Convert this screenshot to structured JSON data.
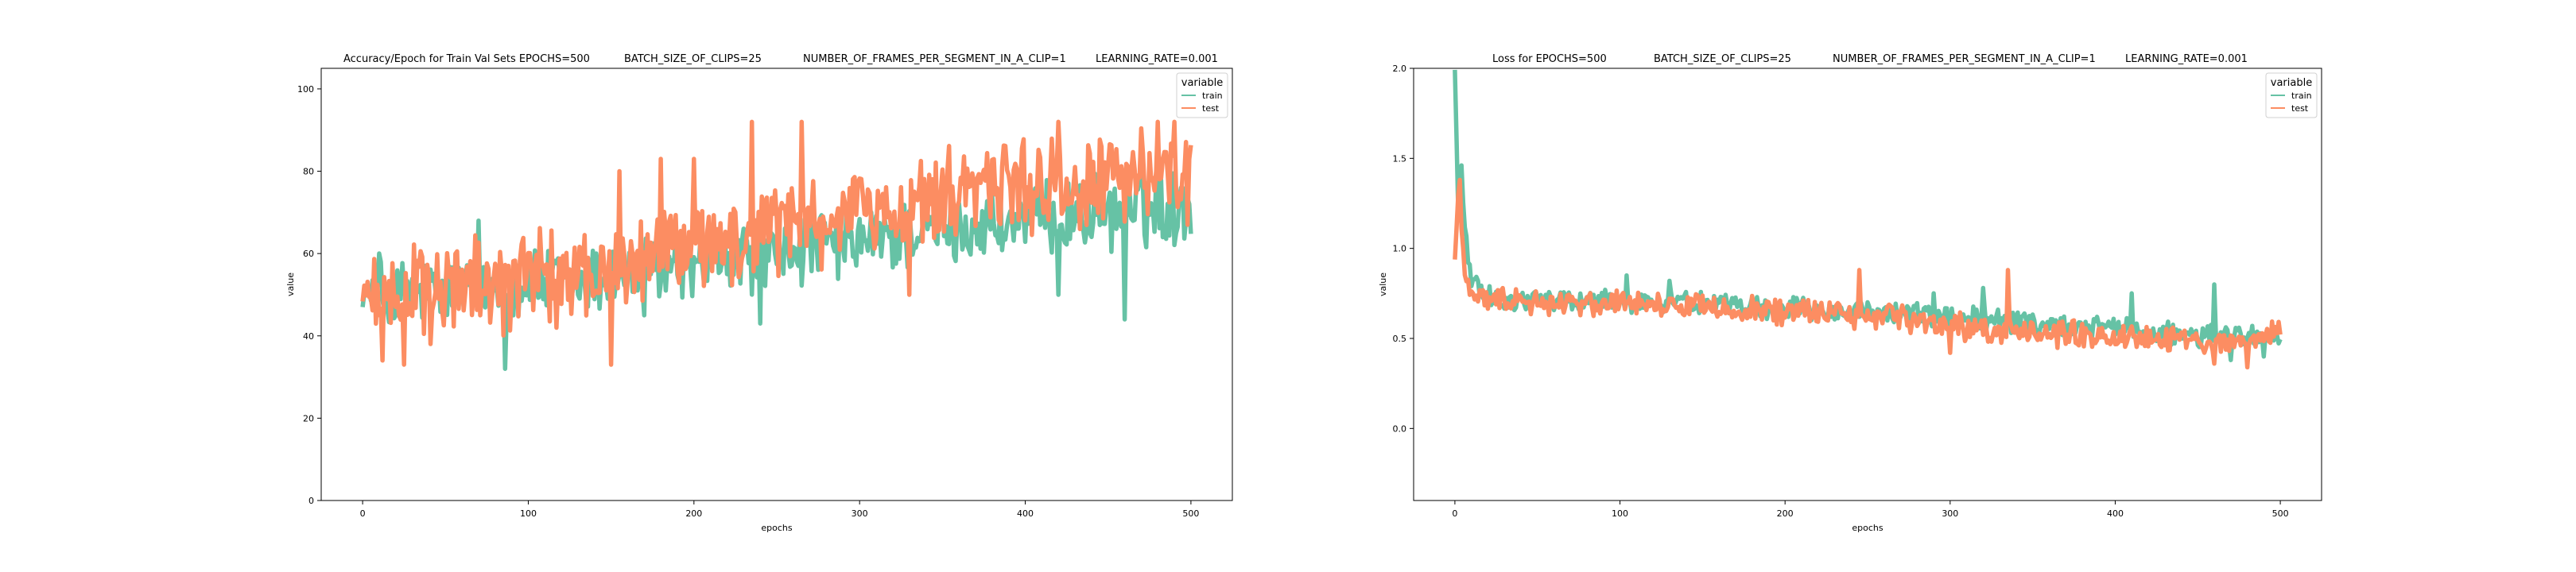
{
  "figure": {
    "background": "#ffffff",
    "series_colors": {
      "train": "#66c2a5",
      "test": "#fc8d62"
    }
  },
  "chart_data": [
    {
      "type": "line",
      "title_segments": [
        "Accuracy/Epoch for Train Val Sets EPOCHS=500",
        "BATCH_SIZE_OF_CLIPS=25",
        "NUMBER_OF_FRAMES_PER_SEGMENT_IN_A_CLIP=1",
        "LEARNING_RATE=0.001"
      ],
      "xlabel": "epochs",
      "ylabel": "value",
      "xlim": [
        -25,
        525
      ],
      "ylim": [
        0,
        105
      ],
      "xticks": [
        0,
        100,
        200,
        300,
        400,
        500
      ],
      "yticks": [
        0,
        20,
        40,
        60,
        80,
        100
      ],
      "grid": false,
      "legend": {
        "title": "variable",
        "placement": "top-right",
        "entries": [
          "train",
          "test"
        ]
      },
      "series": [
        {
          "name": "train",
          "color": "#66c2a5",
          "anchors": [
            [
              0,
              50
            ],
            [
              10,
              50
            ],
            [
              20,
              49
            ],
            [
              30,
              51
            ],
            [
              40,
              50
            ],
            [
              50,
              51
            ],
            [
              60,
              52
            ],
            [
              70,
              51
            ],
            [
              80,
              52
            ],
            [
              90,
              53
            ],
            [
              100,
              53
            ],
            [
              110,
              52
            ],
            [
              120,
              53
            ],
            [
              130,
              53
            ],
            [
              140,
              54
            ],
            [
              150,
              54
            ],
            [
              160,
              55
            ],
            [
              170,
              55
            ],
            [
              180,
              56
            ],
            [
              190,
              57
            ],
            [
              200,
              57
            ],
            [
              210,
              58
            ],
            [
              220,
              58
            ],
            [
              230,
              59
            ],
            [
              240,
              60
            ],
            [
              250,
              60
            ],
            [
              260,
              61
            ],
            [
              270,
              61
            ],
            [
              280,
              62
            ],
            [
              290,
              62
            ],
            [
              300,
              63
            ],
            [
              310,
              63
            ],
            [
              320,
              64
            ],
            [
              330,
              65
            ],
            [
              340,
              65
            ],
            [
              350,
              66
            ],
            [
              360,
              66
            ],
            [
              370,
              67
            ],
            [
              380,
              67
            ],
            [
              390,
              67
            ],
            [
              400,
              68
            ],
            [
              410,
              68
            ],
            [
              420,
              69
            ],
            [
              430,
              69
            ],
            [
              440,
              70
            ],
            [
              450,
              70
            ],
            [
              460,
              70
            ],
            [
              470,
              71
            ],
            [
              480,
              71
            ],
            [
              490,
              71
            ],
            [
              500,
              72
            ]
          ],
          "noise": 7,
          "spikes": [
            [
              10,
              60
            ],
            [
              70,
              68
            ],
            [
              86,
              32
            ],
            [
              130,
              50
            ],
            [
              170,
              45
            ],
            [
              240,
              43
            ],
            [
              340,
              70
            ],
            [
              350,
              75
            ],
            [
              420,
              50
            ],
            [
              460,
              44
            ],
            [
              480,
              79
            ],
            [
              495,
              76
            ]
          ]
        },
        {
          "name": "test",
          "color": "#fc8d62",
          "anchors": [
            [
              0,
              50
            ],
            [
              10,
              50
            ],
            [
              20,
              50
            ],
            [
              30,
              50
            ],
            [
              40,
              50
            ],
            [
              50,
              51
            ],
            [
              60,
              51
            ],
            [
              70,
              52
            ],
            [
              80,
              52
            ],
            [
              90,
              53
            ],
            [
              100,
              53
            ],
            [
              110,
              54
            ],
            [
              120,
              54
            ],
            [
              130,
              55
            ],
            [
              140,
              56
            ],
            [
              150,
              57
            ],
            [
              160,
              58
            ],
            [
              170,
              59
            ],
            [
              180,
              60
            ],
            [
              190,
              61
            ],
            [
              200,
              62
            ],
            [
              210,
              62
            ],
            [
              220,
              63
            ],
            [
              230,
              64
            ],
            [
              240,
              65
            ],
            [
              250,
              65
            ],
            [
              260,
              66
            ],
            [
              270,
              67
            ],
            [
              280,
              67
            ],
            [
              290,
              68
            ],
            [
              300,
              69
            ],
            [
              310,
              70
            ],
            [
              320,
              71
            ],
            [
              330,
              72
            ],
            [
              340,
              73
            ],
            [
              350,
              74
            ],
            [
              360,
              75
            ],
            [
              370,
              75
            ],
            [
              380,
              76
            ],
            [
              390,
              76
            ],
            [
              400,
              76
            ],
            [
              410,
              77
            ],
            [
              420,
              77
            ],
            [
              430,
              77
            ],
            [
              440,
              77
            ],
            [
              450,
              78
            ],
            [
              460,
              78
            ],
            [
              470,
              78
            ],
            [
              480,
              79
            ],
            [
              490,
              80
            ],
            [
              500,
              77
            ]
          ],
          "noise": 9,
          "spikes": [
            [
              12,
              34
            ],
            [
              25,
              33
            ],
            [
              150,
              33
            ],
            [
              155,
              80
            ],
            [
              180,
              83
            ],
            [
              200,
              83
            ],
            [
              235,
              92
            ],
            [
              265,
              92
            ],
            [
              330,
              50
            ],
            [
              420,
              92
            ],
            [
              480,
              92
            ],
            [
              490,
              92
            ],
            [
              498,
              67
            ]
          ]
        }
      ]
    },
    {
      "type": "line",
      "title_segments": [
        "Loss for  EPOCHS=500",
        "BATCH_SIZE_OF_CLIPS=25",
        "NUMBER_OF_FRAMES_PER_SEGMENT_IN_A_CLIP=1",
        "LEARNING_RATE=0.001"
      ],
      "xlabel": "epochs",
      "ylabel": "value",
      "xlim": [
        -25,
        525
      ],
      "ylim": [
        -0.4,
        2.0
      ],
      "xticks": [
        0,
        100,
        200,
        300,
        400,
        500
      ],
      "yticks": [
        0.0,
        0.5,
        1.0,
        1.5,
        2.0
      ],
      "ytick_labels": [
        "0.0",
        "0.5",
        "1.0",
        "1.5",
        "2.0"
      ],
      "grid": false,
      "legend": {
        "title": "variable",
        "placement": "top-right",
        "entries": [
          "train",
          "test"
        ]
      },
      "series": [
        {
          "name": "train",
          "color": "#66c2a5",
          "anchors": [
            [
              0,
              2.0
            ],
            [
              2,
              1.2
            ],
            [
              4,
              1.45
            ],
            [
              6,
              1.1
            ],
            [
              8,
              0.95
            ],
            [
              10,
              0.85
            ],
            [
              15,
              0.78
            ],
            [
              20,
              0.74
            ],
            [
              30,
              0.72
            ],
            [
              40,
              0.71
            ],
            [
              60,
              0.71
            ],
            [
              80,
              0.71
            ],
            [
              100,
              0.71
            ],
            [
              120,
              0.7
            ],
            [
              140,
              0.7
            ],
            [
              160,
              0.69
            ],
            [
              180,
              0.68
            ],
            [
              200,
              0.67
            ],
            [
              220,
              0.66
            ],
            [
              240,
              0.65
            ],
            [
              260,
              0.64
            ],
            [
              280,
              0.63
            ],
            [
              300,
              0.62
            ],
            [
              320,
              0.6
            ],
            [
              340,
              0.58
            ],
            [
              360,
              0.57
            ],
            [
              380,
              0.56
            ],
            [
              400,
              0.55
            ],
            [
              420,
              0.54
            ],
            [
              440,
              0.53
            ],
            [
              460,
              0.52
            ],
            [
              480,
              0.51
            ],
            [
              500,
              0.52
            ]
          ],
          "noise": 0.05,
          "spikes": [
            [
              104,
              0.85
            ],
            [
              130,
              0.82
            ],
            [
              290,
              0.75
            ],
            [
              320,
              0.78
            ],
            [
              410,
              0.75
            ],
            [
              460,
              0.8
            ],
            [
              470,
              0.38
            ],
            [
              490,
              0.4
            ]
          ]
        },
        {
          "name": "test",
          "color": "#fc8d62",
          "anchors": [
            [
              0,
              0.95
            ],
            [
              2,
              1.3
            ],
            [
              4,
              1.1
            ],
            [
              6,
              0.9
            ],
            [
              8,
              0.8
            ],
            [
              10,
              0.75
            ],
            [
              15,
              0.72
            ],
            [
              20,
              0.71
            ],
            [
              30,
              0.7
            ],
            [
              40,
              0.7
            ],
            [
              60,
              0.7
            ],
            [
              80,
              0.7
            ],
            [
              100,
              0.69
            ],
            [
              120,
              0.69
            ],
            [
              140,
              0.68
            ],
            [
              160,
              0.67
            ],
            [
              180,
              0.66
            ],
            [
              200,
              0.65
            ],
            [
              220,
              0.64
            ],
            [
              240,
              0.63
            ],
            [
              260,
              0.62
            ],
            [
              280,
              0.6
            ],
            [
              300,
              0.57
            ],
            [
              320,
              0.55
            ],
            [
              340,
              0.54
            ],
            [
              360,
              0.53
            ],
            [
              380,
              0.52
            ],
            [
              400,
              0.51
            ],
            [
              420,
              0.5
            ],
            [
              440,
              0.49
            ],
            [
              460,
              0.48
            ],
            [
              480,
              0.47
            ],
            [
              500,
              0.55
            ]
          ],
          "noise": 0.055,
          "spikes": [
            [
              3,
              1.38
            ],
            [
              245,
              0.88
            ],
            [
              335,
              0.88
            ],
            [
              300,
              0.42
            ],
            [
              460,
              0.36
            ],
            [
              480,
              0.34
            ]
          ]
        }
      ]
    }
  ]
}
